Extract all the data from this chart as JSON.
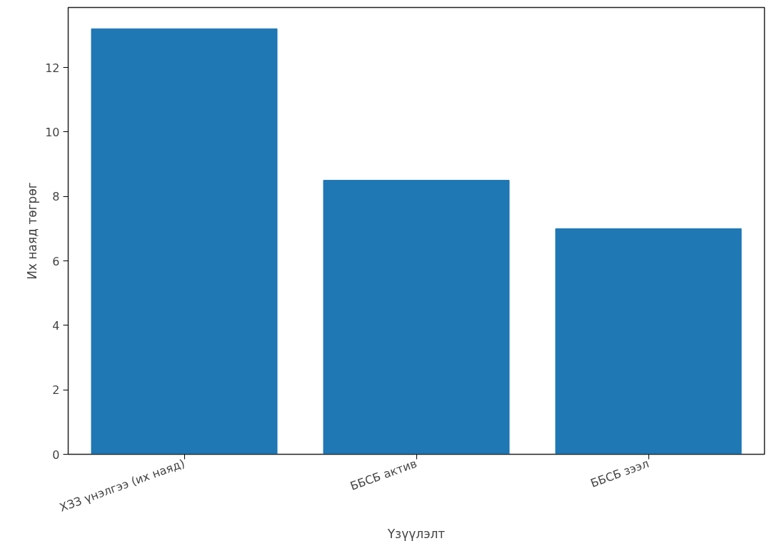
{
  "chart_data": {
    "type": "bar",
    "xlabel": "Үзүүлэлт",
    "ylabel": "Их наяд төгрөг",
    "categories": [
      "ХЗЗ үнэлгээ (их наяд)",
      "ББСБ актив",
      "ББСБ зээл"
    ],
    "values": [
      13.2,
      8.5,
      7.0
    ],
    "color": "#1f77b4",
    "ylim": [
      0,
      13.86
    ],
    "yticks": [
      0,
      2,
      4,
      6,
      8,
      10,
      12
    ],
    "grid": false
  }
}
